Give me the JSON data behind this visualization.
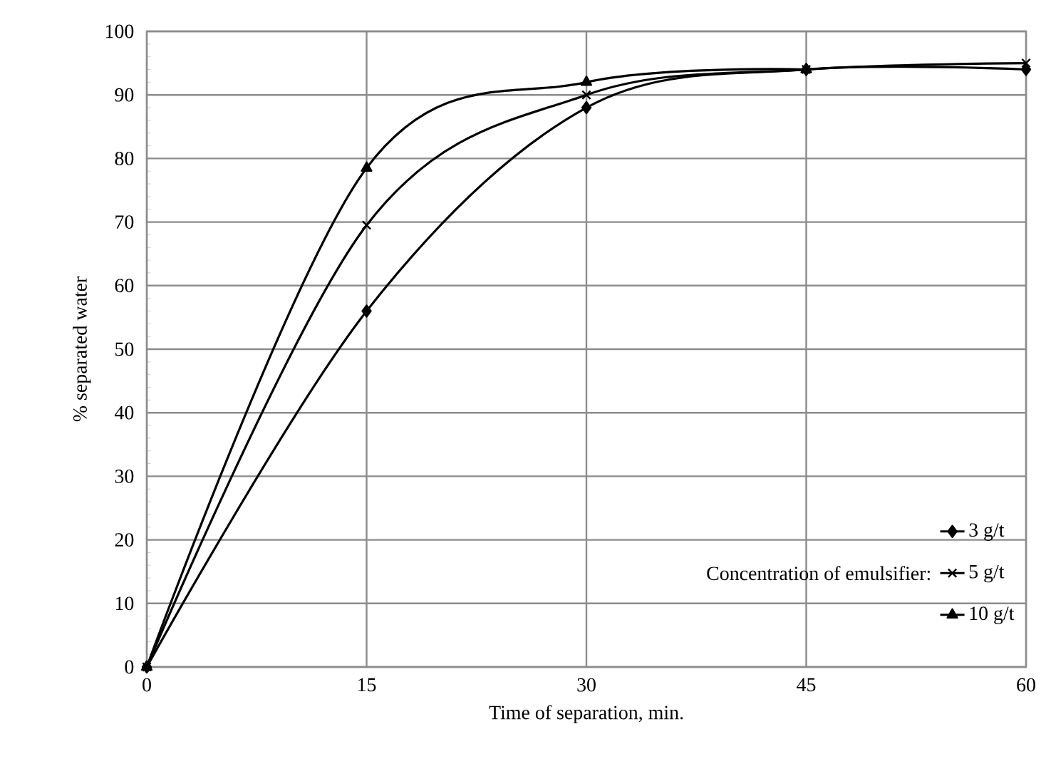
{
  "chart_data": {
    "type": "line",
    "xlabel": "Time of separation, min.",
    "ylabel": "% separated water",
    "legend_title": "Concentration of emulsifier:",
    "x": [
      0,
      15,
      30,
      45,
      60
    ],
    "xlim": [
      0,
      60
    ],
    "xticks": [
      0,
      15,
      30,
      45,
      60
    ],
    "ylim": [
      0,
      100
    ],
    "yticks": [
      0,
      10,
      20,
      30,
      40,
      50,
      60,
      70,
      80,
      90,
      100
    ],
    "grid": true,
    "legend": "bottom right",
    "series": [
      {
        "name": "3    g/t",
        "color": "#000000",
        "marker": "diamond",
        "values": [
          0,
          56,
          88,
          94,
          94
        ]
      },
      {
        "name": "5    g/t",
        "color": "#000000",
        "marker": "cross",
        "values": [
          0,
          69.5,
          90,
          94,
          95
        ]
      },
      {
        "name": "10  g/t",
        "color": "#000000",
        "marker": "triangle",
        "values": [
          0,
          78.5,
          92,
          94,
          null
        ]
      }
    ]
  }
}
